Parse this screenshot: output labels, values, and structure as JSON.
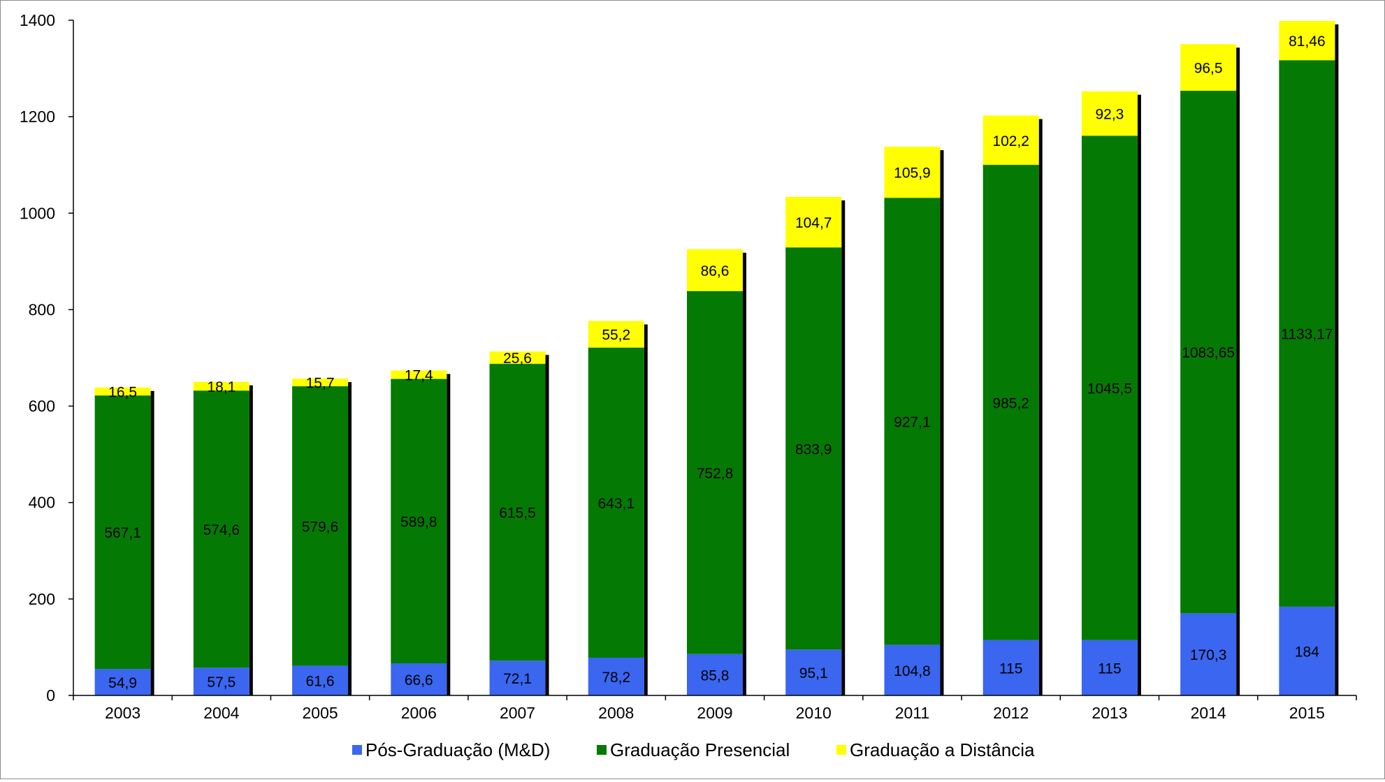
{
  "chart_data": {
    "type": "bar",
    "stacked": true,
    "title": "",
    "xlabel": "",
    "ylabel": "",
    "ylim": [
      0,
      1400
    ],
    "yticks": [
      "0",
      "200",
      "400",
      "600",
      "800",
      "1000",
      "1200",
      "1400"
    ],
    "grid": false,
    "legend": "bottom",
    "categories": [
      "2003",
      "2004",
      "2005",
      "2006",
      "2007",
      "2008",
      "2009",
      "2010",
      "2011",
      "2012",
      "2013",
      "2014",
      "2015"
    ],
    "series": [
      {
        "name": "Pós-Graduação (M&D)",
        "color": "#3a66f0",
        "values": [
          54.9,
          57.5,
          61.6,
          66.6,
          72.1,
          78.2,
          85.8,
          95.1,
          104.8,
          115,
          115,
          170.3,
          184
        ],
        "labels": [
          "54,9",
          "57,5",
          "61,6",
          "66,6",
          "72,1",
          "78,2",
          "85,8",
          "95,1",
          "104,8",
          "115",
          "115",
          "170,3",
          "184"
        ]
      },
      {
        "name": "Graduação Presencial",
        "color": "#047a04",
        "values": [
          567.1,
          574.6,
          579.6,
          589.8,
          615.5,
          643.1,
          752.8,
          833.9,
          927.1,
          985.2,
          1045.5,
          1083.65,
          1133.17
        ],
        "labels": [
          "567,1",
          "574,6",
          "579,6",
          "589,8",
          "615,5",
          "643,1",
          "752,8",
          "833,9",
          "927,1",
          "985,2",
          "1045,5",
          "1083,65",
          "1133,17"
        ]
      },
      {
        "name": "Graduação a Distância",
        "color": "#ffff00",
        "values": [
          16.5,
          18.1,
          15.7,
          17.4,
          25.6,
          55.2,
          86.6,
          104.7,
          105.9,
          102.2,
          92.3,
          96.5,
          81.46
        ],
        "labels": [
          "16,5",
          "18,1",
          "15,7",
          "17,4",
          "25,6",
          "55,2",
          "86,6",
          "104,7",
          "105,9",
          "102,2",
          "92,3",
          "96,5",
          "81,46"
        ]
      }
    ],
    "legend_labels": {
      "s0a": "Pós-Graduação (M&D)",
      "s1a": "Graduação Presencial",
      "s2a": "Graduação a Distância"
    }
  }
}
